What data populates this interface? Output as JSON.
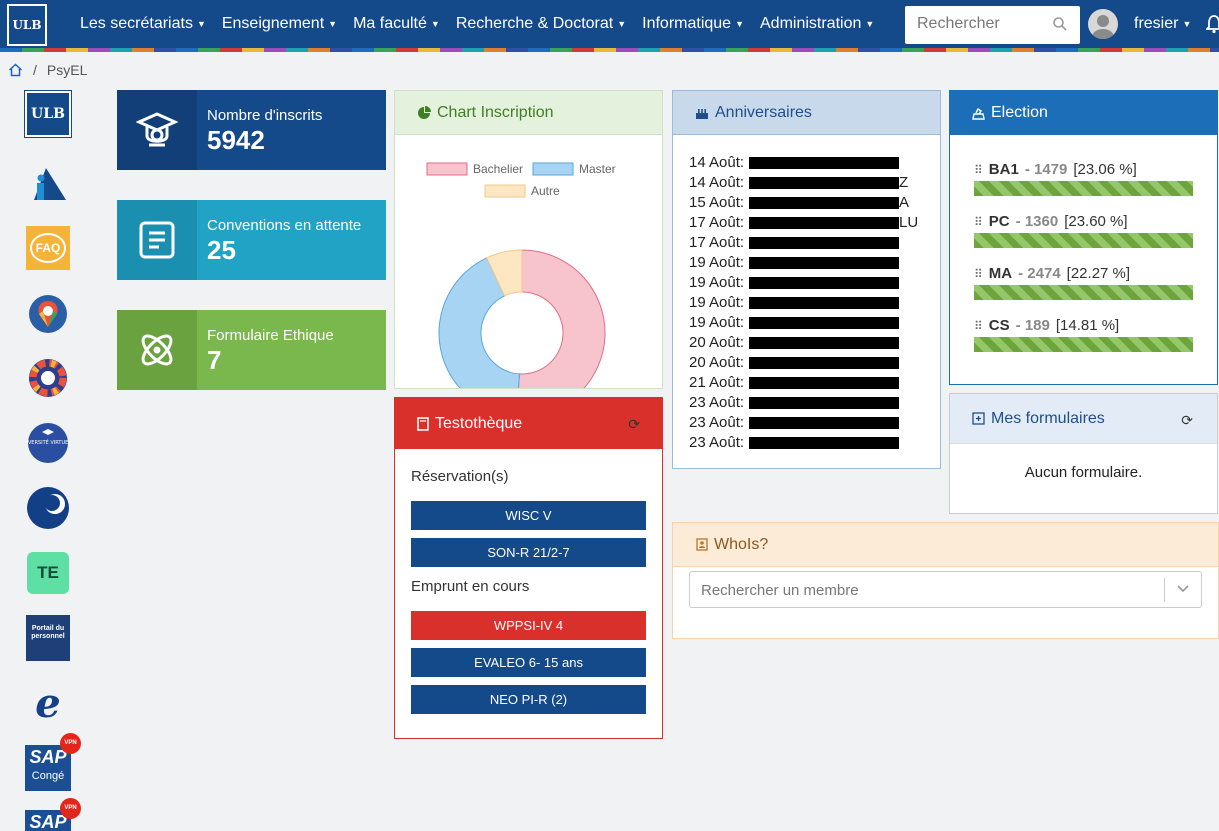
{
  "nav": {
    "logo": "ULB",
    "menu": [
      "Les secrétariats",
      "Enseignement",
      "Ma faculté",
      "Recherche & Doctorat",
      "Informatique",
      "Administration"
    ],
    "search_placeholder": "Rechercher",
    "username": "fresier"
  },
  "breadcrumb": {
    "current": "PsyEL"
  },
  "sidebar": {
    "ulb_label": "ULB",
    "faq_label": "FAQ",
    "uv_label": "UNIVERSITÉ VIRTUELLE",
    "te_label": "TE",
    "portail_label": "Portail du personnel",
    "e_label": "e",
    "sap1_label": "SAP",
    "sap1_sub": "Congé",
    "sap2_label": "SAP",
    "vpn_label": "VPN"
  },
  "stats": [
    {
      "label": "Nombre d'inscrits",
      "value": "5942",
      "color": "#154a8a"
    },
    {
      "label": "Conventions en attente",
      "value": "25",
      "color": "#21a3c6"
    },
    {
      "label": "Formulaire Ethique",
      "value": "7",
      "color": "#7ab84e"
    }
  ],
  "chart_panel": {
    "title": "Chart Inscription"
  },
  "chart_data": {
    "type": "pie",
    "title": "",
    "categories": [
      "Bachelier",
      "Master",
      "Autre"
    ],
    "values": [
      51,
      42,
      7
    ],
    "colors": [
      "#f7c3cd",
      "#a8d4f3",
      "#fde6c2"
    ],
    "stroke_colors": [
      "#e36d84",
      "#55a6dc",
      "#f2c889"
    ],
    "donut": true,
    "legend_position": "top"
  },
  "testotheque": {
    "title": "Testothèque",
    "reservations_title": "Réservation(s)",
    "reservations": [
      "WISC V",
      "SON-R 21/2-7"
    ],
    "emprunts_title": "Emprunt en cours",
    "emprunts": [
      {
        "label": "WPPSI-IV 4",
        "overdue": true
      },
      {
        "label": "EVALEO 6- 15 ans",
        "overdue": false
      },
      {
        "label": "NEO PI-R (2)",
        "overdue": false
      }
    ]
  },
  "anniversaires": {
    "title": "Anniversaires",
    "entries": [
      {
        "date": "14 Août:",
        "name": "",
        "visible_suffix": ""
      },
      {
        "date": "14 Août:",
        "name": "",
        "visible_suffix": "Z"
      },
      {
        "date": "15 Août:",
        "name": "",
        "visible_suffix": "A"
      },
      {
        "date": "17 Août:",
        "name": "",
        "visible_suffix": "LU"
      },
      {
        "date": "17 Août:",
        "name": "",
        "visible_suffix": ""
      },
      {
        "date": "19 Août:",
        "name": "",
        "visible_suffix": ""
      },
      {
        "date": "19 Août:",
        "name": "",
        "visible_suffix": ""
      },
      {
        "date": "19 Août:",
        "name": "",
        "visible_suffix": ""
      },
      {
        "date": "19 Août:",
        "name": "",
        "visible_suffix": ""
      },
      {
        "date": "20 Août:",
        "name": "",
        "visible_suffix": ""
      },
      {
        "date": "20 Août:",
        "name": "",
        "visible_suffix": ""
      },
      {
        "date": "21 Août:",
        "name": "",
        "visible_suffix": ""
      },
      {
        "date": "23 Août:",
        "name": "",
        "visible_suffix": ""
      },
      {
        "date": "23 Août:",
        "name": "",
        "visible_suffix": ""
      },
      {
        "date": "23 Août:",
        "name": "",
        "visible_suffix": ""
      }
    ]
  },
  "election": {
    "title": "Election",
    "items": [
      {
        "code": "BA1",
        "count": "1479",
        "pct": "[23.06 %]",
        "fill": 1.0
      },
      {
        "code": "PC",
        "count": "1360",
        "pct": "[23.60 %]",
        "fill": 1.0
      },
      {
        "code": "MA",
        "count": "2474",
        "pct": "[22.27 %]",
        "fill": 1.0
      },
      {
        "code": "CS",
        "count": "189",
        "pct": "[14.81 %]",
        "fill": 1.0
      }
    ]
  },
  "formulaires": {
    "title": "Mes formulaires",
    "empty": "Aucun formulaire."
  },
  "whois": {
    "title": "WhoIs?",
    "placeholder": "Rechercher un membre"
  }
}
